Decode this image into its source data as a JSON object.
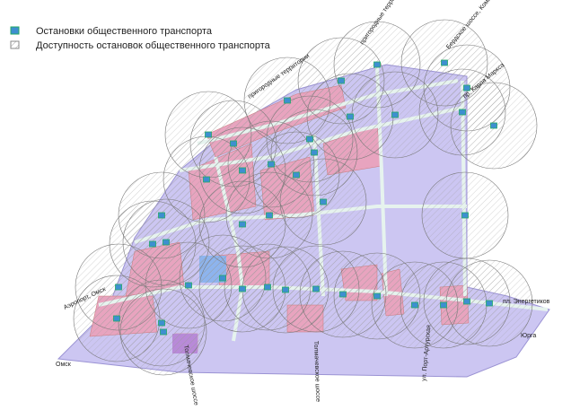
{
  "legend": {
    "items": [
      "Остановки общественного транспорта",
      "Доступность остановок общественного транспорта"
    ]
  },
  "labels": [
    "пригородные территории",
    "пригородные территории",
    "Бердское шоссе, Коммунальный мост через р. Обь",
    "пр. Карла Маркса",
    "Аэропорт, Омск",
    "пл. Энергетиков",
    "Юрга",
    "Омск",
    "Толмачевское шоссе",
    "Толмачевское шоссе",
    "ул. Порт-Артурская"
  ]
}
